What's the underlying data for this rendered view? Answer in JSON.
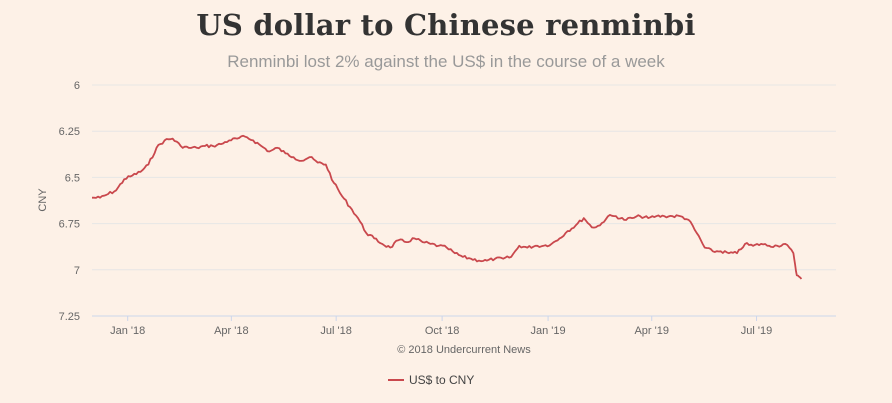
{
  "chart_data": {
    "type": "line",
    "title": "US dollar to Chinese renminbi",
    "subtitle": "Renminbi lost 2% against the US$ in the course of a week",
    "ylabel": "CNY",
    "xlabel": "",
    "y_reversed": true,
    "ylim": [
      6,
      7.25
    ],
    "yticks": [
      "6",
      "6.25",
      "6.5",
      "6.75",
      "7",
      "7.25"
    ],
    "xticks": [
      {
        "label": "Jan '18",
        "date": "2018-01-01"
      },
      {
        "label": "Apr '18",
        "date": "2018-04-01"
      },
      {
        "label": "Jul '18",
        "date": "2018-07-01"
      },
      {
        "label": "Oct '18",
        "date": "2018-10-01"
      },
      {
        "label": "Jan '19",
        "date": "2019-01-01"
      },
      {
        "label": "Apr '19",
        "date": "2019-04-01"
      },
      {
        "label": "Jul '19",
        "date": "2019-07-01"
      }
    ],
    "xlim": [
      "2017-12-01",
      "2019-09-08"
    ],
    "grid": "horizontal",
    "credit": "© 2018 Undercurrent News",
    "legend_position": "bottom",
    "series": [
      {
        "name": "US$ to CNY",
        "color": "#c9484d",
        "points": [
          [
            "2017-12-01",
            6.61
          ],
          [
            "2017-12-08",
            6.61
          ],
          [
            "2017-12-15",
            6.59
          ],
          [
            "2017-12-22",
            6.57
          ],
          [
            "2017-12-29",
            6.51
          ],
          [
            "2018-01-05",
            6.49
          ],
          [
            "2018-01-12",
            6.47
          ],
          [
            "2018-01-19",
            6.43
          ],
          [
            "2018-01-26",
            6.34
          ],
          [
            "2018-02-02",
            6.3
          ],
          [
            "2018-02-09",
            6.29
          ],
          [
            "2018-02-16",
            6.33
          ],
          [
            "2018-02-23",
            6.34
          ],
          [
            "2018-03-02",
            6.34
          ],
          [
            "2018-03-09",
            6.33
          ],
          [
            "2018-03-16",
            6.33
          ],
          [
            "2018-03-23",
            6.32
          ],
          [
            "2018-03-30",
            6.3
          ],
          [
            "2018-04-06",
            6.29
          ],
          [
            "2018-04-13",
            6.28
          ],
          [
            "2018-04-20",
            6.3
          ],
          [
            "2018-04-27",
            6.33
          ],
          [
            "2018-05-04",
            6.36
          ],
          [
            "2018-05-11",
            6.34
          ],
          [
            "2018-05-18",
            6.37
          ],
          [
            "2018-05-25",
            6.39
          ],
          [
            "2018-06-01",
            6.41
          ],
          [
            "2018-06-08",
            6.39
          ],
          [
            "2018-06-15",
            6.42
          ],
          [
            "2018-06-22",
            6.43
          ],
          [
            "2018-06-29",
            6.53
          ],
          [
            "2018-07-06",
            6.6
          ],
          [
            "2018-07-13",
            6.66
          ],
          [
            "2018-07-20",
            6.72
          ],
          [
            "2018-07-27",
            6.8
          ],
          [
            "2018-08-03",
            6.83
          ],
          [
            "2018-08-10",
            6.86
          ],
          [
            "2018-08-17",
            6.88
          ],
          [
            "2018-08-24",
            6.84
          ],
          [
            "2018-08-31",
            6.85
          ],
          [
            "2018-09-07",
            6.83
          ],
          [
            "2018-09-14",
            6.85
          ],
          [
            "2018-09-21",
            6.86
          ],
          [
            "2018-09-28",
            6.87
          ],
          [
            "2018-10-05",
            6.88
          ],
          [
            "2018-10-12",
            6.91
          ],
          [
            "2018-10-19",
            6.93
          ],
          [
            "2018-10-26",
            6.94
          ],
          [
            "2018-11-02",
            6.95
          ],
          [
            "2018-11-09",
            6.95
          ],
          [
            "2018-11-16",
            6.94
          ],
          [
            "2018-11-23",
            6.94
          ],
          [
            "2018-11-30",
            6.93
          ],
          [
            "2018-12-07",
            6.87
          ],
          [
            "2018-12-14",
            6.88
          ],
          [
            "2018-12-21",
            6.87
          ],
          [
            "2018-12-28",
            6.87
          ],
          [
            "2019-01-04",
            6.86
          ],
          [
            "2019-01-11",
            6.83
          ],
          [
            "2019-01-18",
            6.79
          ],
          [
            "2019-01-25",
            6.76
          ],
          [
            "2019-02-01",
            6.72
          ],
          [
            "2019-02-08",
            6.77
          ],
          [
            "2019-02-15",
            6.76
          ],
          [
            "2019-02-22",
            6.71
          ],
          [
            "2019-03-01",
            6.71
          ],
          [
            "2019-03-08",
            6.73
          ],
          [
            "2019-03-15",
            6.72
          ],
          [
            "2019-03-22",
            6.71
          ],
          [
            "2019-03-29",
            6.72
          ],
          [
            "2019-04-05",
            6.71
          ],
          [
            "2019-04-12",
            6.71
          ],
          [
            "2019-04-19",
            6.71
          ],
          [
            "2019-04-26",
            6.71
          ],
          [
            "2019-05-03",
            6.73
          ],
          [
            "2019-05-10",
            6.8
          ],
          [
            "2019-05-17",
            6.88
          ],
          [
            "2019-05-24",
            6.9
          ],
          [
            "2019-05-31",
            6.9
          ],
          [
            "2019-06-07",
            6.91
          ],
          [
            "2019-06-14",
            6.91
          ],
          [
            "2019-06-21",
            6.86
          ],
          [
            "2019-06-28",
            6.87
          ],
          [
            "2019-07-05",
            6.86
          ],
          [
            "2019-07-12",
            6.87
          ],
          [
            "2019-07-19",
            6.87
          ],
          [
            "2019-07-26",
            6.86
          ],
          [
            "2019-08-02",
            6.91
          ],
          [
            "2019-08-05",
            7.03
          ],
          [
            "2019-08-09",
            7.05
          ]
        ]
      }
    ]
  }
}
